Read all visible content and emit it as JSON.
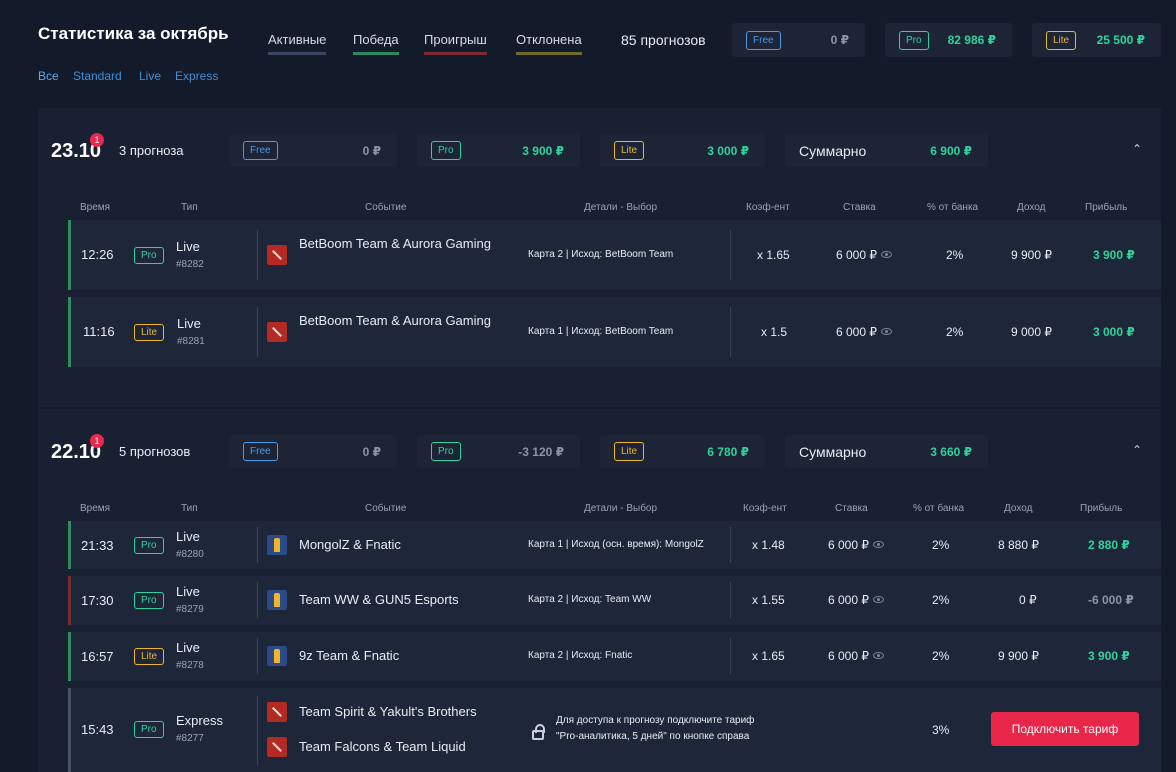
{
  "header": {
    "title": "Статистика за октябрь",
    "filters": [
      {
        "label": "Активные",
        "color": "#3a4660"
      },
      {
        "label": "Победа",
        "color": "#2c8a5e"
      },
      {
        "label": "Проигрыш",
        "color": "#7a2b34"
      },
      {
        "label": "Отклонена",
        "color": "#6f6a2a"
      }
    ],
    "count": "85 прогнозов",
    "tariffs": [
      {
        "badge": "Free",
        "value": "0 ₽"
      },
      {
        "badge": "Pro",
        "value": "82 986 ₽"
      },
      {
        "badge": "Lite",
        "value": "25 500 ₽"
      }
    ],
    "subtabs": [
      "Все",
      "Standard",
      "Live",
      "Express"
    ]
  },
  "columns": [
    "Время",
    "Тип",
    "Событие",
    "Детали - Выбор",
    "Коэф-ент",
    "Ставка",
    "% от банка",
    "Доход",
    "Прибыль"
  ],
  "days": [
    {
      "date": "23.10",
      "notif": "1",
      "count": "3 прогноза",
      "summary": {
        "free": "0 ₽",
        "pro": "3 900 ₽",
        "lite": "3 000 ₽",
        "total_label": "Суммарно",
        "total": "6 900 ₽"
      },
      "rows": [
        {
          "time": "12:26",
          "badge": "Pro",
          "type": "Live",
          "id": "#8282",
          "event": "BetBoom Team & Aurora Gaming",
          "details": "Карта 2 | Исход: BetBoom Team",
          "coef": "x 1.65",
          "stake": "6 000 ₽",
          "bank": "2%",
          "income": "9 900 ₽",
          "profit": "3 900 ₽"
        },
        {
          "time": "11:16",
          "badge": "Lite",
          "type": "Live",
          "id": "#8281",
          "event": "BetBoom Team & Aurora Gaming",
          "details": "Карта 1 | Исход: BetBoom Team",
          "coef": "x 1.5",
          "stake": "6 000 ₽",
          "bank": "2%",
          "income": "9 000 ₽",
          "profit": "3 000 ₽"
        }
      ]
    },
    {
      "date": "22.10",
      "notif": "1",
      "count": "5 прогнозов",
      "summary": {
        "free": "0 ₽",
        "pro": "-3 120 ₽",
        "lite": "6 780 ₽",
        "total_label": "Суммарно",
        "total": "3 660 ₽"
      },
      "rows": [
        {
          "time": "21:33",
          "badge": "Pro",
          "type": "Live",
          "id": "#8280",
          "event": "MongolZ & Fnatic",
          "details": "Карта 1 | Исход (осн. время): MongolZ",
          "coef": "x 1.48",
          "stake": "6 000 ₽",
          "bank": "2%",
          "income": "8 880 ₽",
          "profit": "2 880 ₽"
        },
        {
          "time": "17:30",
          "badge": "Pro",
          "type": "Live",
          "id": "#8279",
          "event": "Team WW & GUN5 Esports",
          "details": "Карта 2 | Исход: Team WW",
          "coef": "x 1.55",
          "stake": "6 000 ₽",
          "bank": "2%",
          "income": "0 ₽",
          "profit": "-6 000 ₽"
        },
        {
          "time": "16:57",
          "badge": "Lite",
          "type": "Live",
          "id": "#8278",
          "event": "9z Team & Fnatic",
          "details": "Карта 2 | Исход: Fnatic",
          "coef": "x 1.65",
          "stake": "6 000 ₽",
          "bank": "2%",
          "income": "9 900 ₽",
          "profit": "3 900 ₽"
        }
      ],
      "locked": {
        "time": "15:43",
        "badge": "Pro",
        "type": "Express",
        "id": "#8277",
        "event1": "Team Spirit & Yakult's Brothers",
        "event2": "Team Falcons & Team Liquid",
        "msg1": "Для доступа к прогнозу подключите тариф",
        "msg2": "\"Pro-аналитика, 5 дней\" по кнопке справа",
        "bank": "3%",
        "button": "Подключить тариф"
      }
    }
  ]
}
